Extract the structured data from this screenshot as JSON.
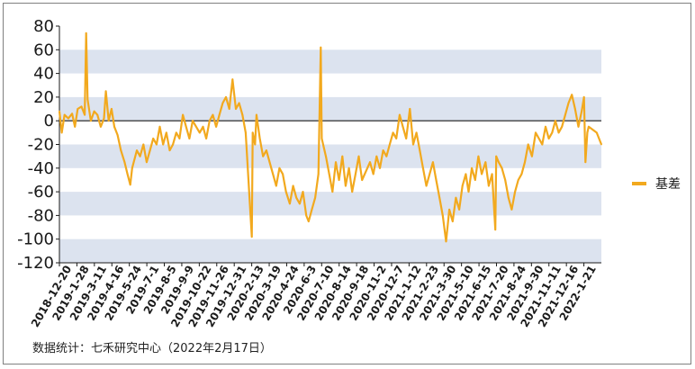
{
  "chart_data": {
    "type": "line",
    "title": "",
    "xlabel": "",
    "ylabel": "",
    "ylim": [
      -120,
      80
    ],
    "yticks": [
      80,
      60,
      40,
      20,
      0,
      -20,
      -40,
      -60,
      -80,
      -100,
      -120
    ],
    "x_tick_labels": [
      "2018-12-20",
      "2019-1-28",
      "2019-3-11",
      "2019-4-16",
      "2019-5-24",
      "2019-7-1",
      "2019-8-5",
      "2019-9-9",
      "2019-10-22",
      "2019-11-26",
      "2019-12-31",
      "2020-2-13",
      "2020-3-19",
      "2020-4-24",
      "2020-6-3",
      "2020-7-10",
      "2020-8-14",
      "2020-9-18",
      "2020-11-2",
      "2020-12-7",
      "2021-1-12",
      "2021-2-23",
      "2021-3-30",
      "2021-5-10",
      "2021-6-15",
      "2021-7-20",
      "2021-8-24",
      "2021-9-30",
      "2021-11-11",
      "2021-12-16",
      "2022-1-21"
    ],
    "x_range": [
      "2018-12-20",
      "2022-02-17"
    ],
    "grid": "alternating horizontal bands",
    "legend_position": "right",
    "series": [
      {
        "name": "基差",
        "color": "#F2A91E",
        "points": [
          [
            "2018-12-20",
            8
          ],
          [
            "2018-12-25",
            -10
          ],
          [
            "2018-12-31",
            5
          ],
          [
            "2019-1-8",
            2
          ],
          [
            "2019-1-16",
            6
          ],
          [
            "2019-1-22",
            -5
          ],
          [
            "2019-1-28",
            10
          ],
          [
            "2019-2-5",
            12
          ],
          [
            "2019-2-12",
            5
          ],
          [
            "2019-2-15",
            74
          ],
          [
            "2019-2-18",
            18
          ],
          [
            "2019-2-25",
            0
          ],
          [
            "2019-3-4",
            8
          ],
          [
            "2019-3-11",
            5
          ],
          [
            "2019-3-18",
            -5
          ],
          [
            "2019-3-25",
            2
          ],
          [
            "2019-3-29",
            25
          ],
          [
            "2019-4-4",
            0
          ],
          [
            "2019-4-10",
            10
          ],
          [
            "2019-4-16",
            -5
          ],
          [
            "2019-4-23",
            -12
          ],
          [
            "2019-4-30",
            -25
          ],
          [
            "2019-5-8",
            -35
          ],
          [
            "2019-5-14",
            -45
          ],
          [
            "2019-5-20",
            -54
          ],
          [
            "2019-5-24",
            -40
          ],
          [
            "2019-6-3",
            -25
          ],
          [
            "2019-6-10",
            -30
          ],
          [
            "2019-6-17",
            -20
          ],
          [
            "2019-6-24",
            -35
          ],
          [
            "2019-7-1",
            -25
          ],
          [
            "2019-7-8",
            -15
          ],
          [
            "2019-7-15",
            -20
          ],
          [
            "2019-7-22",
            -5
          ],
          [
            "2019-7-29",
            -20
          ],
          [
            "2019-8-5",
            -10
          ],
          [
            "2019-8-12",
            -25
          ],
          [
            "2019-8-19",
            -20
          ],
          [
            "2019-8-26",
            -10
          ],
          [
            "2019-9-2",
            -15
          ],
          [
            "2019-9-9",
            5
          ],
          [
            "2019-9-16",
            -5
          ],
          [
            "2019-9-23",
            -15
          ],
          [
            "2019-9-30",
            0
          ],
          [
            "2019-10-15",
            -10
          ],
          [
            "2019-10-22",
            -5
          ],
          [
            "2019-10-29",
            -15
          ],
          [
            "2019-11-5",
            0
          ],
          [
            "2019-11-12",
            5
          ],
          [
            "2019-11-19",
            -5
          ],
          [
            "2019-11-26",
            5
          ],
          [
            "2019-12-3",
            15
          ],
          [
            "2019-12-10",
            20
          ],
          [
            "2019-12-17",
            10
          ],
          [
            "2019-12-24",
            35
          ],
          [
            "2019-12-31",
            10
          ],
          [
            "2020-1-7",
            15
          ],
          [
            "2020-1-14",
            5
          ],
          [
            "2020-1-21",
            -10
          ],
          [
            "2020-2-3",
            -98
          ],
          [
            "2020-2-5",
            -10
          ],
          [
            "2020-2-10",
            -20
          ],
          [
            "2020-2-13",
            5
          ],
          [
            "2020-2-20",
            -15
          ],
          [
            "2020-2-27",
            -30
          ],
          [
            "2020-3-5",
            -25
          ],
          [
            "2020-3-12",
            -35
          ],
          [
            "2020-3-19",
            -45
          ],
          [
            "2020-3-26",
            -55
          ],
          [
            "2020-4-2",
            -40
          ],
          [
            "2020-4-9",
            -45
          ],
          [
            "2020-4-16",
            -60
          ],
          [
            "2020-4-24",
            -70
          ],
          [
            "2020-5-1",
            -55
          ],
          [
            "2020-5-8",
            -65
          ],
          [
            "2020-5-15",
            -70
          ],
          [
            "2020-5-22",
            -60
          ],
          [
            "2020-5-29",
            -80
          ],
          [
            "2020-6-3",
            -85
          ],
          [
            "2020-6-10",
            -75
          ],
          [
            "2020-6-17",
            -65
          ],
          [
            "2020-6-24",
            -45
          ],
          [
            "2020-6-29",
            62
          ],
          [
            "2020-7-1",
            -15
          ],
          [
            "2020-7-10",
            -30
          ],
          [
            "2020-7-17",
            -45
          ],
          [
            "2020-7-24",
            -60
          ],
          [
            "2020-7-31",
            -35
          ],
          [
            "2020-8-7",
            -50
          ],
          [
            "2020-8-14",
            -30
          ],
          [
            "2020-8-21",
            -55
          ],
          [
            "2020-8-28",
            -40
          ],
          [
            "2020-9-4",
            -60
          ],
          [
            "2020-9-11",
            -45
          ],
          [
            "2020-9-18",
            -30
          ],
          [
            "2020-9-25",
            -50
          ],
          [
            "2020-10-12",
            -35
          ],
          [
            "2020-10-19",
            -45
          ],
          [
            "2020-10-26",
            -30
          ],
          [
            "2020-11-2",
            -40
          ],
          [
            "2020-11-9",
            -25
          ],
          [
            "2020-11-16",
            -30
          ],
          [
            "2020-11-23",
            -20
          ],
          [
            "2020-11-30",
            -10
          ],
          [
            "2020-12-7",
            -15
          ],
          [
            "2020-12-14",
            5
          ],
          [
            "2020-12-21",
            -5
          ],
          [
            "2020-12-28",
            -15
          ],
          [
            "2021-1-5",
            10
          ],
          [
            "2021-1-12",
            -20
          ],
          [
            "2021-1-19",
            -10
          ],
          [
            "2021-1-26",
            -25
          ],
          [
            "2021-2-2",
            -40
          ],
          [
            "2021-2-9",
            -55
          ],
          [
            "2021-2-23",
            -35
          ],
          [
            "2021-3-2",
            -50
          ],
          [
            "2021-3-9",
            -65
          ],
          [
            "2021-3-16",
            -80
          ],
          [
            "2021-3-23",
            -102
          ],
          [
            "2021-3-30",
            -75
          ],
          [
            "2021-4-6",
            -85
          ],
          [
            "2021-4-13",
            -65
          ],
          [
            "2021-4-20",
            -75
          ],
          [
            "2021-4-27",
            -55
          ],
          [
            "2021-5-4",
            -45
          ],
          [
            "2021-5-10",
            -60
          ],
          [
            "2021-5-17",
            -40
          ],
          [
            "2021-5-24",
            -50
          ],
          [
            "2021-5-31",
            -30
          ],
          [
            "2021-6-7",
            -45
          ],
          [
            "2021-6-15",
            -35
          ],
          [
            "2021-6-22",
            -55
          ],
          [
            "2021-6-29",
            -45
          ],
          [
            "2021-7-6",
            -92
          ],
          [
            "2021-7-8",
            -30
          ],
          [
            "2021-7-13",
            -35
          ],
          [
            "2021-7-20",
            -40
          ],
          [
            "2021-7-27",
            -50
          ],
          [
            "2021-8-3",
            -65
          ],
          [
            "2021-8-10",
            -75
          ],
          [
            "2021-8-17",
            -60
          ],
          [
            "2021-8-24",
            -50
          ],
          [
            "2021-8-31",
            -45
          ],
          [
            "2021-9-7",
            -35
          ],
          [
            "2021-9-14",
            -20
          ],
          [
            "2021-9-22",
            -30
          ],
          [
            "2021-9-30",
            -10
          ],
          [
            "2021-10-14",
            -20
          ],
          [
            "2021-10-21",
            -5
          ],
          [
            "2021-10-28",
            -15
          ],
          [
            "2021-11-4",
            -10
          ],
          [
            "2021-11-11",
            0
          ],
          [
            "2021-11-18",
            -10
          ],
          [
            "2021-11-25",
            -5
          ],
          [
            "2021-12-2",
            5
          ],
          [
            "2021-12-9",
            15
          ],
          [
            "2021-12-16",
            22
          ],
          [
            "2021-12-23",
            10
          ],
          [
            "2021-12-30",
            -5
          ],
          [
            "2022-1-6",
            8
          ],
          [
            "2022-1-11",
            20
          ],
          [
            "2022-1-14",
            -35
          ],
          [
            "2022-1-18",
            -10
          ],
          [
            "2022-1-21",
            -5
          ],
          [
            "2022-2-7",
            -10
          ],
          [
            "2022-2-17",
            -20
          ]
        ]
      }
    ]
  },
  "footer": {
    "source": "数据统计：七禾研究中心（2022年2月17日）"
  }
}
